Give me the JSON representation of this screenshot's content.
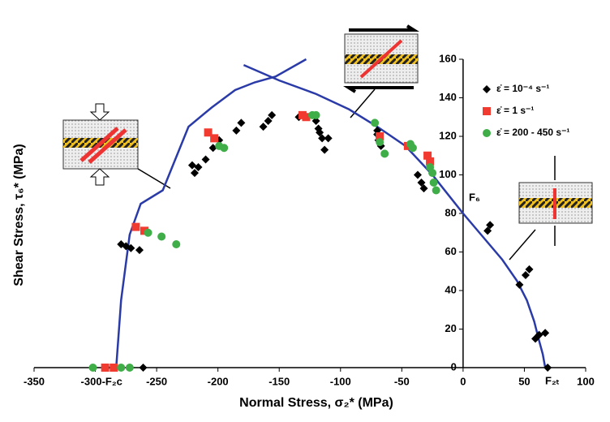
{
  "chart_data": {
    "type": "scatter",
    "x_label": "Normal Stress, σ₂* (MPa)",
    "y_label": "Shear Stress, τ₆* (MPa)",
    "annotations": [
      "F₆",
      "F₂ₜ"
    ],
    "xlim": [
      -350,
      100
    ],
    "ylim": [
      0,
      160
    ],
    "xticks": [
      -350,
      {
        "value": -300,
        "label": "-300-F₂c"
      },
      -250,
      -200,
      -150,
      -100,
      -50,
      0,
      50,
      100
    ],
    "yticks": [
      0,
      20,
      40,
      60,
      80,
      100,
      120,
      140,
      160
    ],
    "series": [
      {
        "name": "ε̇ = 10⁻⁴ s⁻¹",
        "color": "#000000",
        "marker": "diamond",
        "x": [
          -279,
          -275,
          -271,
          -264,
          -221,
          -216,
          -219,
          -210,
          -204,
          -199,
          -185,
          -181,
          -163,
          -159,
          -156,
          -134,
          -120,
          -118,
          -117,
          -115,
          -113,
          -110,
          -70,
          -70,
          -69,
          -67,
          -37,
          -34,
          -32,
          22,
          20,
          46,
          51,
          54,
          59,
          62,
          67,
          -291,
          -261,
          69
        ],
        "values": [
          64,
          63,
          62,
          61,
          105,
          104,
          101,
          108,
          114,
          118,
          123,
          127,
          125,
          128,
          131,
          130,
          128,
          124,
          122,
          119,
          113,
          119,
          123,
          121,
          118,
          115,
          100,
          96,
          93,
          74,
          71,
          43,
          48,
          51,
          15,
          17,
          18,
          0,
          0,
          0
        ]
      },
      {
        "name": "ε̇ = 1 s⁻¹",
        "color": "#f23b30",
        "marker": "square",
        "x": [
          -267,
          -260,
          -208,
          -203,
          -131,
          -128,
          -68,
          -45,
          -29,
          -27,
          -292,
          -285
        ],
        "values": [
          73,
          71,
          122,
          119,
          131,
          130,
          120,
          115,
          110,
          107,
          0,
          0
        ]
      },
      {
        "name": "ε̇ = 200 - 450 s⁻¹",
        "color": "#3fae49",
        "marker": "circle",
        "x": [
          -257,
          -246,
          -234,
          -199,
          -195,
          -123,
          -120,
          -72,
          -68,
          -64,
          -43,
          -41,
          -27,
          -25,
          -24,
          -22,
          -302,
          -279,
          -272
        ],
        "values": [
          70,
          68,
          64,
          115,
          114,
          131,
          131,
          127,
          117,
          111,
          116,
          114,
          104,
          101,
          96,
          92,
          0,
          0,
          0
        ]
      }
    ],
    "curves": [
      {
        "color": "#2a3ba8",
        "x": [
          -283,
          -279,
          -272,
          -263,
          -245,
          -224,
          -205,
          -186,
          -170,
          -153,
          -128
        ],
        "values": [
          0,
          35,
          69,
          85,
          92,
          125,
          135,
          144,
          148,
          151,
          160
        ]
      },
      {
        "color": "#2a3ba8",
        "x": [
          -179,
          -150,
          -120,
          -93,
          -70,
          -47,
          -25,
          0,
          16,
          32,
          44,
          52,
          58,
          62,
          65,
          67
        ],
        "values": [
          157,
          149,
          142,
          134,
          125,
          115,
          100,
          80,
          68,
          56,
          45,
          35,
          24,
          14,
          7,
          0
        ]
      }
    ]
  }
}
